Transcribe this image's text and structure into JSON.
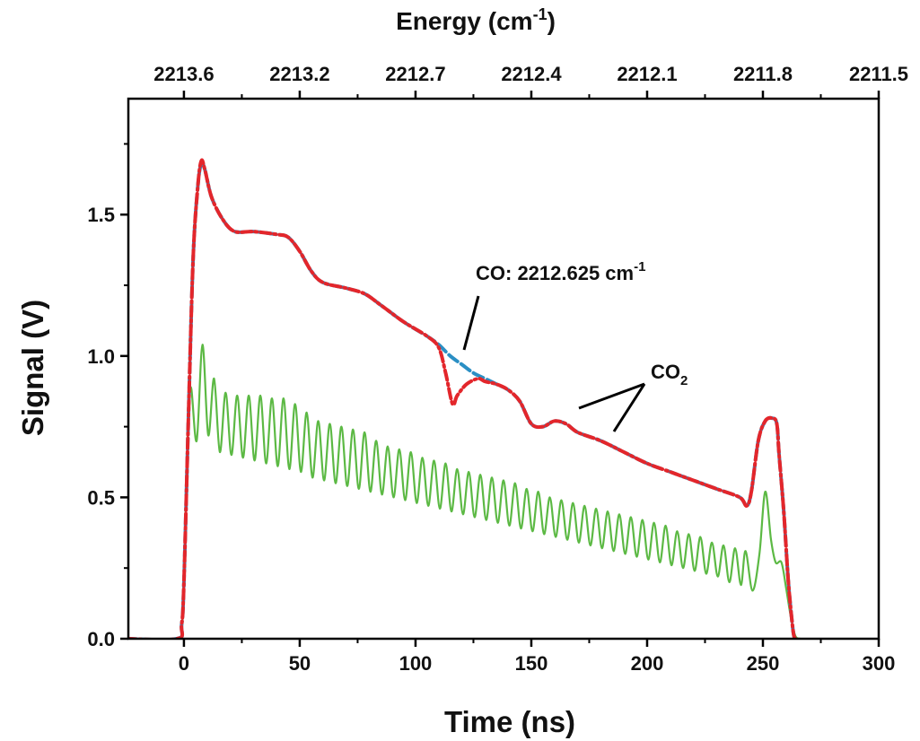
{
  "chart_data": {
    "type": "line",
    "xlabel": "Time (ns)",
    "ylabel": "Signal (V)",
    "top_xlabel": "Energy (cm-1)",
    "xlim": [
      -24,
      300
    ],
    "ylim": [
      0,
      1.91
    ],
    "x_ticks": [
      0,
      50,
      100,
      150,
      200,
      250,
      300
    ],
    "x_tick_labels": [
      "0",
      "50",
      "100",
      "150",
      "200",
      "250",
      "300"
    ],
    "y_ticks": [
      0,
      0.5,
      1.0,
      1.5
    ],
    "y_tick_labels": [
      "0.0",
      "0.5",
      "1.0",
      "1.5"
    ],
    "top_tick_labels": [
      "2213.6",
      "2213.2",
      "2212.7",
      "2212.4",
      "2212.1",
      "2211.8",
      "2211.5"
    ],
    "grid": false,
    "colors": {
      "red": "#e3262b",
      "blue": "#2b8fc4",
      "green": "#5cb944"
    },
    "annotations": [
      {
        "text": "CO: 2212.625 cm",
        "sup": "-1"
      },
      {
        "text": "CO",
        "sub": "2"
      }
    ],
    "series": [
      {
        "style": "dashed",
        "color": "blue",
        "x": [
          -25,
          -3,
          -1,
          0,
          2,
          4,
          6,
          7.5,
          9,
          12,
          17,
          22,
          30,
          40,
          45,
          50,
          55,
          60,
          70,
          78,
          85,
          95,
          105,
          110,
          115,
          120,
          125,
          130,
          135,
          140,
          145,
          150,
          155,
          160,
          165,
          170,
          180,
          190,
          200,
          210,
          220,
          230,
          240,
          243,
          245,
          248,
          251,
          254,
          256,
          257,
          259,
          261,
          263,
          264
        ],
        "y": [
          0,
          0,
          0.05,
          0.2,
          0.8,
          1.35,
          1.6,
          1.68,
          1.66,
          1.56,
          1.48,
          1.44,
          1.44,
          1.43,
          1.42,
          1.37,
          1.3,
          1.26,
          1.24,
          1.22,
          1.18,
          1.12,
          1.07,
          1.04,
          1.0,
          0.97,
          0.94,
          0.92,
          0.9,
          0.88,
          0.84,
          0.76,
          0.75,
          0.77,
          0.76,
          0.73,
          0.7,
          0.66,
          0.62,
          0.59,
          0.56,
          0.53,
          0.5,
          0.47,
          0.52,
          0.7,
          0.77,
          0.78,
          0.76,
          0.65,
          0.45,
          0.2,
          0.03,
          0
        ]
      },
      {
        "style": "dash-dot",
        "color": "red",
        "x": [
          -25,
          -3,
          -1,
          0,
          2,
          4,
          6,
          7.5,
          9,
          12,
          17,
          22,
          30,
          40,
          45,
          50,
          55,
          60,
          70,
          78,
          85,
          95,
          105,
          110,
          113,
          116,
          118,
          122,
          127,
          130,
          135,
          140,
          145,
          150,
          155,
          160,
          165,
          170,
          180,
          190,
          200,
          210,
          220,
          230,
          240,
          243,
          245,
          248,
          251,
          254,
          256,
          257,
          259,
          261,
          263,
          264
        ],
        "y": [
          0,
          0,
          0.05,
          0.2,
          0.8,
          1.35,
          1.6,
          1.69,
          1.66,
          1.56,
          1.48,
          1.44,
          1.44,
          1.43,
          1.42,
          1.37,
          1.3,
          1.26,
          1.24,
          1.22,
          1.18,
          1.12,
          1.07,
          1.03,
          0.94,
          0.83,
          0.86,
          0.9,
          0.92,
          0.91,
          0.9,
          0.88,
          0.84,
          0.76,
          0.75,
          0.77,
          0.76,
          0.73,
          0.7,
          0.66,
          0.62,
          0.59,
          0.56,
          0.53,
          0.5,
          0.47,
          0.52,
          0.7,
          0.77,
          0.78,
          0.76,
          0.65,
          0.45,
          0.2,
          0.03,
          0
        ]
      },
      {
        "style": "solid",
        "color": "green",
        "peaks_x": [
          3,
          8,
          13,
          18,
          23,
          28,
          33,
          38,
          43,
          48,
          53,
          58,
          63,
          68,
          73,
          78,
          83,
          88,
          93,
          98,
          103,
          108,
          113,
          118,
          123,
          128,
          133,
          138,
          143,
          148,
          153,
          158,
          163,
          168,
          173,
          178,
          183,
          188,
          193,
          198,
          203,
          208,
          213,
          218,
          223,
          228,
          233,
          238,
          242.5
        ],
        "peaks_y": [
          0.89,
          1.04,
          0.92,
          0.87,
          0.86,
          0.86,
          0.86,
          0.85,
          0.85,
          0.83,
          0.8,
          0.77,
          0.76,
          0.75,
          0.74,
          0.73,
          0.7,
          0.68,
          0.67,
          0.66,
          0.64,
          0.63,
          0.62,
          0.6,
          0.59,
          0.58,
          0.57,
          0.56,
          0.55,
          0.53,
          0.52,
          0.5,
          0.49,
          0.48,
          0.47,
          0.46,
          0.45,
          0.44,
          0.43,
          0.42,
          0.41,
          0.4,
          0.38,
          0.37,
          0.36,
          0.34,
          0.33,
          0.32,
          0.31
        ],
        "troughs_x": [
          5.5,
          10.5,
          15.5,
          20.5,
          25.5,
          30.5,
          35.5,
          40.5,
          45.5,
          50.5,
          55.5,
          60.5,
          65.5,
          70.5,
          75.5,
          80.5,
          85.5,
          90.5,
          95.5,
          100.5,
          105.5,
          110.5,
          115.5,
          120.5,
          125.5,
          130.5,
          135.5,
          140.5,
          145.5,
          150.5,
          155.5,
          160.5,
          165.5,
          170.5,
          175.5,
          180.5,
          185.5,
          190.5,
          195.5,
          200.5,
          205.5,
          210.5,
          215.5,
          220.5,
          225.5,
          230.5,
          235.5,
          240.5,
          245.5
        ],
        "troughs_y": [
          0.7,
          0.72,
          0.66,
          0.65,
          0.64,
          0.63,
          0.62,
          0.61,
          0.6,
          0.59,
          0.57,
          0.56,
          0.55,
          0.54,
          0.53,
          0.52,
          0.51,
          0.5,
          0.49,
          0.48,
          0.47,
          0.46,
          0.45,
          0.44,
          0.43,
          0.42,
          0.41,
          0.4,
          0.39,
          0.38,
          0.37,
          0.36,
          0.35,
          0.34,
          0.33,
          0.32,
          0.31,
          0.3,
          0.29,
          0.28,
          0.27,
          0.26,
          0.25,
          0.24,
          0.23,
          0.22,
          0.2,
          0.19,
          0.17
        ],
        "head_x": [
          -25,
          -3,
          -1,
          0,
          1.5
        ],
        "head_y": [
          0,
          0,
          0.02,
          0.2,
          0.7
        ],
        "tail_x": [
          248.5,
          251,
          253.5,
          255.5,
          258,
          260,
          262,
          264,
          266
        ],
        "tail_y": [
          0.3,
          0.52,
          0.35,
          0.27,
          0.27,
          0.18,
          0.08,
          0.01,
          0
        ]
      }
    ]
  }
}
